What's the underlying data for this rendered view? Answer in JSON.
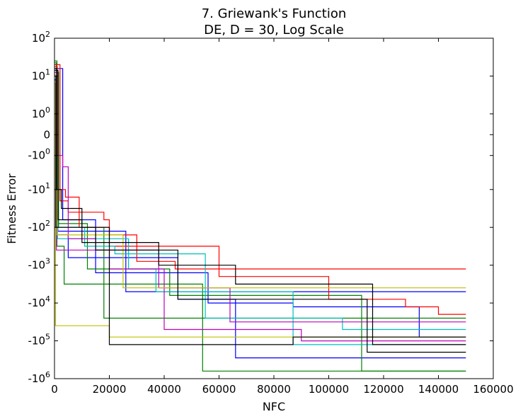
{
  "chart_data": {
    "type": "line",
    "title_line1": "7.   Griewank's Function",
    "title_line2": "DE, D = 30, Log Scale",
    "xlabel": "NFC",
    "ylabel": "Fitness Error",
    "xlim": [
      0,
      160000
    ],
    "x_ticks": [
      {
        "value": 0,
        "label": "0"
      },
      {
        "value": 20000,
        "label": "20000"
      },
      {
        "value": 40000,
        "label": "40000"
      },
      {
        "value": 60000,
        "label": "60000"
      },
      {
        "value": 80000,
        "label": "80000"
      },
      {
        "value": 100000,
        "label": "100000"
      },
      {
        "value": 120000,
        "label": "120000"
      },
      {
        "value": 140000,
        "label": "140000"
      },
      {
        "value": 160000,
        "label": "160000"
      }
    ],
    "y_ticks": [
      {
        "value": 2,
        "base": "10",
        "exp": "2"
      },
      {
        "value": 1,
        "base": "10",
        "exp": "1"
      },
      {
        "value": 0,
        "base": "10",
        "exp": "0"
      },
      {
        "value": -0.55,
        "base": "0",
        "exp": ""
      },
      {
        "value": -1.1,
        "base": "-10",
        "exp": "0"
      },
      {
        "value": -2,
        "base": "-10",
        "exp": "1"
      },
      {
        "value": -3,
        "base": "-10",
        "exp": "2"
      },
      {
        "value": -4,
        "base": "-10",
        "exp": "3"
      },
      {
        "value": -5,
        "base": "-10",
        "exp": "4"
      },
      {
        "value": -6,
        "base": "-10",
        "exp": "5"
      },
      {
        "value": -7,
        "base": "-10",
        "exp": "6"
      }
    ],
    "y_range": [
      -7,
      2
    ],
    "grid": false,
    "series": [
      {
        "color": "#0000ff",
        "points": [
          [
            0,
            1.3
          ],
          [
            800,
            1.3
          ],
          [
            800,
            -3.2
          ],
          [
            5000,
            -3.2
          ],
          [
            5000,
            -3.8
          ],
          [
            45000,
            -3.8
          ],
          [
            45000,
            -4.9
          ],
          [
            66000,
            -4.9
          ],
          [
            66000,
            -6.45
          ],
          [
            150000,
            -6.45
          ]
        ]
      },
      {
        "color": "#0000ff",
        "points": [
          [
            0,
            1.2
          ],
          [
            3000,
            1.2
          ],
          [
            3000,
            -2.8
          ],
          [
            15000,
            -2.8
          ],
          [
            15000,
            -4.2
          ],
          [
            56000,
            -4.2
          ],
          [
            56000,
            -5.0
          ],
          [
            87000,
            -5.0
          ],
          [
            87000,
            -5.1
          ],
          [
            133000,
            -5.1
          ],
          [
            133000,
            -5.9
          ],
          [
            150000,
            -5.9
          ]
        ]
      },
      {
        "color": "#0000ff",
        "points": [
          [
            0,
            0.9
          ],
          [
            1200,
            0.9
          ],
          [
            1200,
            -3.1
          ],
          [
            26000,
            -3.1
          ],
          [
            26000,
            -4.7
          ],
          [
            150000,
            -4.7
          ]
        ]
      },
      {
        "color": "#008000",
        "points": [
          [
            0,
            1.4
          ],
          [
            900,
            1.4
          ],
          [
            900,
            -3.5
          ],
          [
            3500,
            -3.5
          ],
          [
            3500,
            -4.5
          ],
          [
            54000,
            -4.5
          ],
          [
            54000,
            -6.8
          ],
          [
            150000,
            -6.8
          ]
        ]
      },
      {
        "color": "#008000",
        "points": [
          [
            0,
            1.35
          ],
          [
            700,
            1.35
          ],
          [
            700,
            -2.9
          ],
          [
            12000,
            -2.9
          ],
          [
            12000,
            -4.1
          ],
          [
            42000,
            -4.1
          ],
          [
            42000,
            -4.8
          ],
          [
            112000,
            -4.8
          ],
          [
            112000,
            -6.8
          ],
          [
            150000,
            -6.8
          ]
        ]
      },
      {
        "color": "#008000",
        "points": [
          [
            0,
            1.1
          ],
          [
            1500,
            1.1
          ],
          [
            1500,
            -3.0
          ],
          [
            18000,
            -3.0
          ],
          [
            18000,
            -5.4
          ],
          [
            150000,
            -5.4
          ]
        ]
      },
      {
        "color": "#ff0000",
        "points": [
          [
            0,
            1.3
          ],
          [
            2000,
            1.3
          ],
          [
            2000,
            -2.3
          ],
          [
            5000,
            -2.3
          ],
          [
            5000,
            -2.6
          ],
          [
            9000,
            -2.6
          ],
          [
            9000,
            -3.0
          ],
          [
            20000,
            -3.0
          ],
          [
            20000,
            -3.2
          ],
          [
            30000,
            -3.2
          ],
          [
            30000,
            -3.9
          ],
          [
            44000,
            -3.9
          ],
          [
            44000,
            -4.1
          ],
          [
            150000,
            -4.1
          ]
        ]
      },
      {
        "color": "#ff0000",
        "points": [
          [
            0,
            1.25
          ],
          [
            1000,
            1.25
          ],
          [
            1000,
            -2.0
          ],
          [
            4000,
            -2.0
          ],
          [
            4000,
            -2.2
          ],
          [
            9000,
            -2.2
          ],
          [
            9000,
            -2.6
          ],
          [
            18000,
            -2.6
          ],
          [
            18000,
            -2.8
          ],
          [
            20000,
            -2.8
          ],
          [
            20000,
            -3.5
          ],
          [
            60000,
            -3.5
          ],
          [
            60000,
            -4.3
          ],
          [
            100000,
            -4.3
          ],
          [
            100000,
            -4.9
          ],
          [
            128000,
            -4.9
          ],
          [
            128000,
            -5.1
          ],
          [
            140000,
            -5.1
          ],
          [
            140000,
            -5.3
          ],
          [
            150000,
            -5.3
          ]
        ]
      },
      {
        "color": "#00bfbf",
        "points": [
          [
            0,
            1.15
          ],
          [
            1100,
            1.15
          ],
          [
            1100,
            -3.3
          ],
          [
            27000,
            -3.3
          ],
          [
            27000,
            -4.1
          ],
          [
            37000,
            -4.1
          ],
          [
            37000,
            -4.7
          ],
          [
            87000,
            -4.7
          ],
          [
            87000,
            -6.1
          ],
          [
            150000,
            -6.1
          ]
        ]
      },
      {
        "color": "#00bfbf",
        "points": [
          [
            0,
            1.0
          ],
          [
            600,
            1.0
          ],
          [
            600,
            -3.0
          ],
          [
            11000,
            -3.0
          ],
          [
            11000,
            -3.5
          ],
          [
            22000,
            -3.5
          ],
          [
            22000,
            -3.7
          ],
          [
            55000,
            -3.7
          ],
          [
            55000,
            -5.4
          ],
          [
            105000,
            -5.4
          ],
          [
            105000,
            -5.7
          ],
          [
            150000,
            -5.7
          ]
        ]
      },
      {
        "color": "#bf00bf",
        "points": [
          [
            0,
            1.1
          ],
          [
            1000,
            1.1
          ],
          [
            1000,
            -1.1
          ],
          [
            3000,
            -1.1
          ],
          [
            3000,
            -1.4
          ],
          [
            5000,
            -1.4
          ],
          [
            5000,
            -3.3
          ],
          [
            15000,
            -3.3
          ],
          [
            15000,
            -3.6
          ],
          [
            38000,
            -3.6
          ],
          [
            38000,
            -4.6
          ],
          [
            64000,
            -4.6
          ],
          [
            64000,
            -5.5
          ],
          [
            150000,
            -5.5
          ]
        ]
      },
      {
        "color": "#bf00bf",
        "points": [
          [
            0,
            1.0
          ],
          [
            700,
            1.0
          ],
          [
            700,
            -3.6
          ],
          [
            20000,
            -3.6
          ],
          [
            20000,
            -4.1
          ],
          [
            40000,
            -4.1
          ],
          [
            40000,
            -5.7
          ],
          [
            90000,
            -5.7
          ],
          [
            90000,
            -6.0
          ],
          [
            150000,
            -6.0
          ]
        ]
      },
      {
        "color": "#bfbf00",
        "points": [
          [
            0,
            0.8
          ],
          [
            400,
            0.8
          ],
          [
            400,
            -5.6
          ],
          [
            20000,
            -5.6
          ],
          [
            20000,
            -5.9
          ],
          [
            150000,
            -5.9
          ]
        ]
      },
      {
        "color": "#bfbf00",
        "points": [
          [
            0,
            1.05
          ],
          [
            900,
            1.05
          ],
          [
            900,
            -3.2
          ],
          [
            25000,
            -3.2
          ],
          [
            25000,
            -4.6
          ],
          [
            150000,
            -4.6
          ]
        ]
      },
      {
        "color": "#000000",
        "points": [
          [
            0,
            1.2
          ],
          [
            800,
            1.2
          ],
          [
            800,
            -2.0
          ],
          [
            2500,
            -2.0
          ],
          [
            2500,
            -2.5
          ],
          [
            10000,
            -2.5
          ],
          [
            10000,
            -3.0
          ],
          [
            20000,
            -3.0
          ],
          [
            20000,
            -6.1
          ],
          [
            87000,
            -6.1
          ],
          [
            87000,
            -5.9
          ],
          [
            150000,
            -5.9
          ]
        ]
      },
      {
        "color": "#000000",
        "points": [
          [
            0,
            1.15
          ],
          [
            1300,
            1.15
          ],
          [
            1300,
            -2.8
          ],
          [
            10000,
            -2.8
          ],
          [
            10000,
            -3.4
          ],
          [
            38000,
            -3.4
          ],
          [
            38000,
            -4.0
          ],
          [
            66000,
            -4.0
          ],
          [
            66000,
            -4.5
          ],
          [
            116000,
            -4.5
          ],
          [
            116000,
            -6.1
          ],
          [
            150000,
            -6.1
          ]
        ]
      },
      {
        "color": "#000000",
        "points": [
          [
            0,
            1.0
          ],
          [
            500,
            1.0
          ],
          [
            500,
            -3.0
          ],
          [
            15000,
            -3.0
          ],
          [
            15000,
            -3.6
          ],
          [
            45000,
            -3.6
          ],
          [
            45000,
            -4.9
          ],
          [
            114000,
            -4.9
          ],
          [
            114000,
            -6.3
          ],
          [
            150000,
            -6.3
          ]
        ]
      }
    ]
  }
}
